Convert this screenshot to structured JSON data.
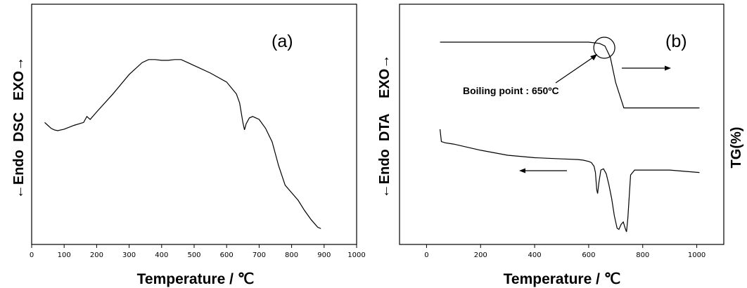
{
  "chart_data": [
    {
      "panel_label": "(a)",
      "type": "line",
      "xlabel": "Temperature / ℃",
      "ylabel_left": "←Endo  DSC   EXO→",
      "xlim": [
        0,
        1000
      ],
      "xticks": [
        0,
        100,
        200,
        300,
        400,
        500,
        600,
        700,
        800,
        900,
        1000
      ],
      "yticks_shown": false,
      "series": [
        {
          "x": [
            40,
            50,
            60,
            70,
            80,
            100,
            130,
            160,
            165,
            170,
            175,
            180,
            200,
            250,
            300,
            340,
            360,
            380,
            400,
            420,
            440,
            460,
            480,
            500,
            550,
            600,
            630,
            640,
            650,
            655,
            660,
            670,
            680,
            700,
            720,
            740,
            760,
            780,
            800,
            820,
            840,
            860,
            880,
            890
          ],
          "y": [
            0.79,
            0.81,
            0.83,
            0.84,
            0.845,
            0.835,
            0.81,
            0.79,
            0.77,
            0.75,
            0.76,
            0.77,
            0.72,
            0.6,
            0.47,
            0.39,
            0.37,
            0.37,
            0.375,
            0.375,
            0.37,
            0.37,
            0.39,
            0.41,
            0.46,
            0.52,
            0.6,
            0.66,
            0.79,
            0.84,
            0.8,
            0.76,
            0.75,
            0.77,
            0.83,
            0.92,
            1.08,
            1.21,
            1.26,
            1.31,
            1.38,
            1.44,
            1.49,
            1.5
          ]
        }
      ]
    },
    {
      "panel_label": "(b)",
      "type": "line",
      "xlabel": "Temperature / ℃",
      "ylabel_left": "←Endo  DTA    EXO→",
      "ylabel_right": "TG(%)",
      "xlim": [
        -100,
        1100
      ],
      "xticks": [
        0,
        200,
        400,
        600,
        800,
        1000
      ],
      "yticks_shown": false,
      "annotation": "Boiling point : 650ºC",
      "annotation_point": 650,
      "series": [
        {
          "name": "TG",
          "x": [
            50,
            600,
            640,
            660,
            680,
            700,
            730,
            750,
            1010
          ],
          "y": [
            0.0,
            0.0,
            0.01,
            0.03,
            0.12,
            0.32,
            0.52,
            0.52,
            0.52
          ]
        },
        {
          "name": "DTA",
          "x": [
            50,
            55,
            70,
            100,
            200,
            300,
            400,
            500,
            560,
            580,
            600,
            610,
            620,
            625,
            630,
            633,
            638,
            645,
            655,
            665,
            675,
            685,
            695,
            705,
            712,
            720,
            728,
            735,
            740,
            745,
            755,
            770,
            800,
            900,
            1010
          ],
          "y": [
            0.5,
            0.6,
            0.61,
            0.62,
            0.67,
            0.71,
            0.73,
            0.74,
            0.745,
            0.75,
            0.76,
            0.77,
            0.8,
            0.85,
            0.99,
            1.02,
            0.93,
            0.83,
            0.82,
            0.86,
            0.95,
            1.06,
            1.2,
            1.3,
            1.31,
            1.27,
            1.25,
            1.3,
            1.33,
            1.22,
            0.87,
            0.83,
            0.83,
            0.83,
            0.85
          ]
        }
      ]
    }
  ]
}
